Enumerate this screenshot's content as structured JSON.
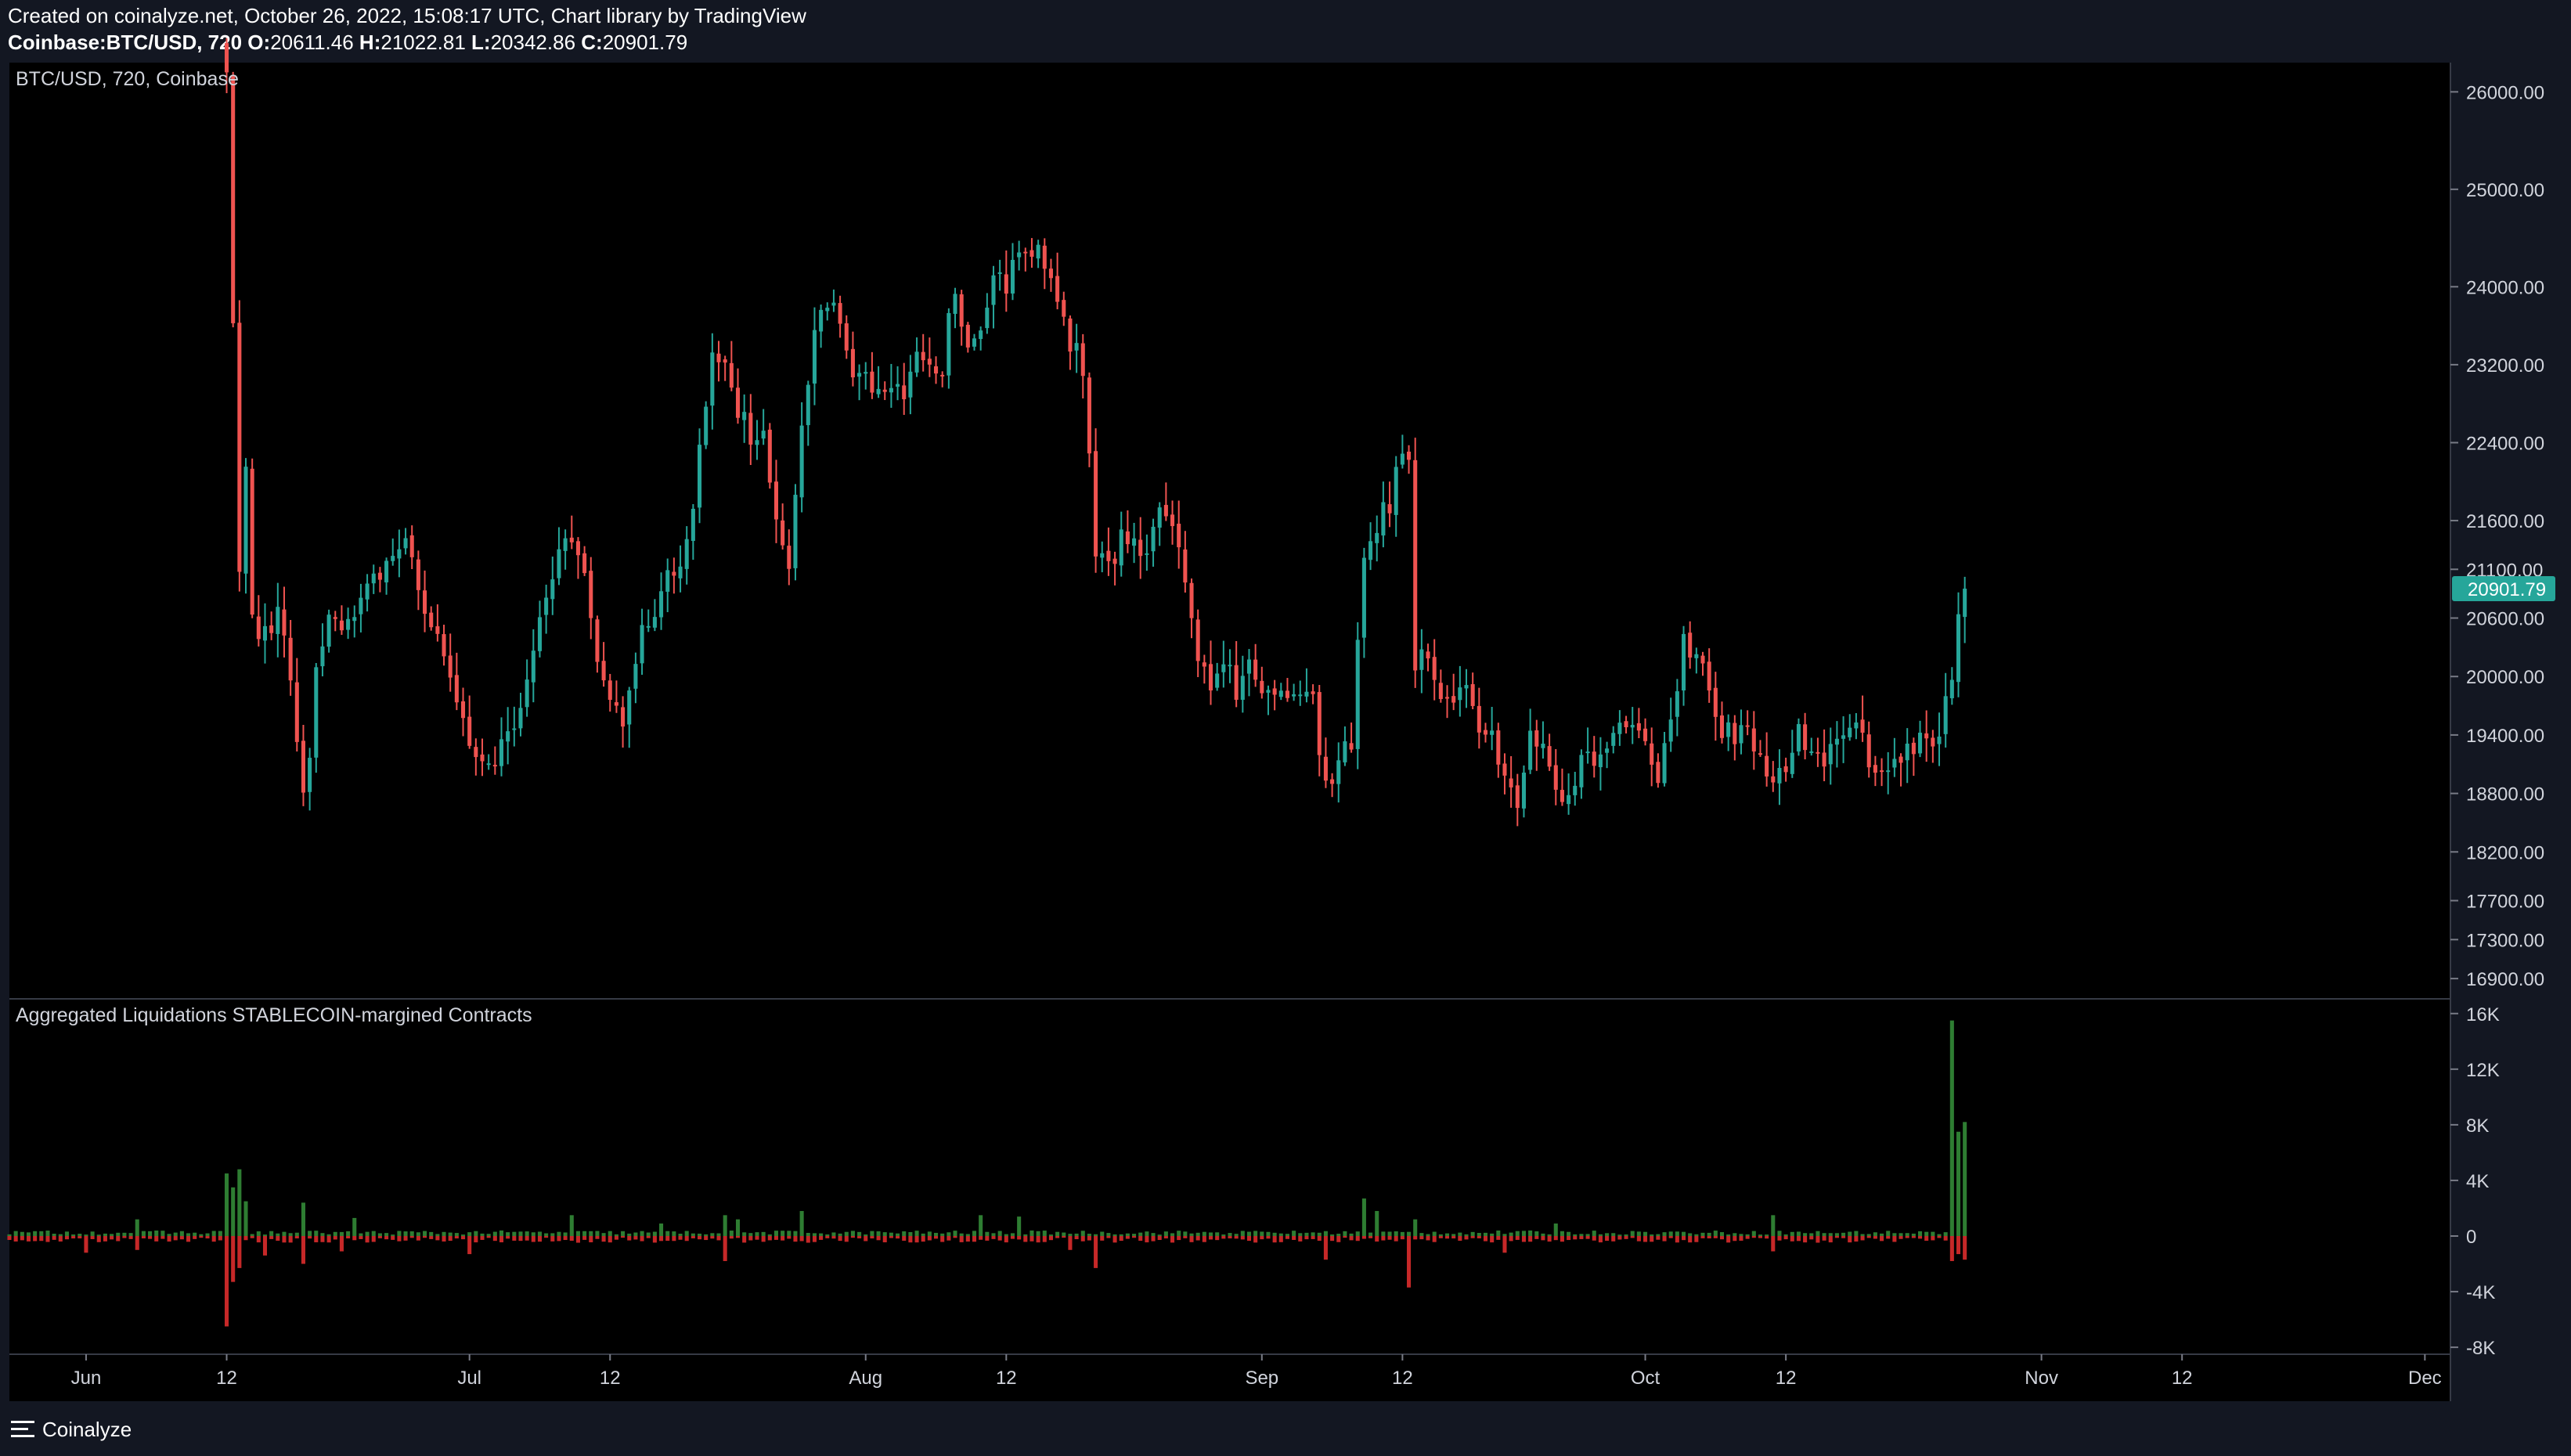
{
  "header": {
    "created": "Created on coinalyze.net, October 26, 2022, 15:08:17 UTC, Chart library by TradingView",
    "symbol": "Coinbase:BTC/USD, 720 ",
    "o_label": "O:",
    "o_value": "20611.46",
    "h_label": " H:",
    "h_value": "21022.81",
    "l_label": " L:",
    "l_value": "20342.86",
    "c_label": " C:",
    "c_value": "20901.79"
  },
  "price_pane": {
    "legend": "BTC/USD, 720, Coinbase"
  },
  "liq_pane": {
    "legend": "Aggregated Liquidations STABLECOIN-margined Contracts"
  },
  "footer": {
    "brand": "Coinalyze",
    "brand_icon": "menu-lines-icon"
  },
  "colors": {
    "up": "#26a69a",
    "down": "#ef5350",
    "liq_long": "#2e7d32",
    "liq_short": "#c62828",
    "last_price_bg": "#26a69a"
  },
  "chart_data": [
    {
      "type": "candlestick",
      "title": "BTC/USD, 720, Coinbase",
      "interval_hours": 12,
      "ylim": [
        16700,
        26300
      ],
      "y_ticks": [
        26000,
        25000,
        24000,
        23200,
        22400,
        21600,
        21100,
        20600,
        20000,
        19400,
        18800,
        18200,
        17700,
        17300,
        16900
      ],
      "y_tick_labels": [
        "26000.00",
        "25000.00",
        "24000.00",
        "23200.00",
        "22400.00",
        "21600.00",
        "21100.00",
        "20600.00",
        "20000.00",
        "19400.00",
        "18800.00",
        "18200.00",
        "17700.00",
        "17300.00",
        "16900.00"
      ],
      "x_ticks": [
        {
          "date": "2022-06-01",
          "label": "Jun"
        },
        {
          "date": "2022-06-12",
          "label": "12"
        },
        {
          "date": "2022-07-01",
          "label": "Jul"
        },
        {
          "date": "2022-07-12",
          "label": "12"
        },
        {
          "date": "2022-08-01",
          "label": "Aug"
        },
        {
          "date": "2022-08-12",
          "label": "12"
        },
        {
          "date": "2022-09-01",
          "label": "Sep"
        },
        {
          "date": "2022-09-12",
          "label": "12"
        },
        {
          "date": "2022-10-01",
          "label": "Oct"
        },
        {
          "date": "2022-10-12",
          "label": "12"
        },
        {
          "date": "2022-11-01",
          "label": "Nov"
        },
        {
          "date": "2022-11-12",
          "label": "12"
        },
        {
          "date": "2022-12-01",
          "label": "Dec"
        }
      ],
      "x_range": [
        "2022-05-26",
        "2022-12-03"
      ],
      "last_price": 20901.79,
      "last_price_label": "20901.79",
      "close_anchors": [
        [
          "2022-06-12",
          26200
        ],
        [
          "2022-06-12 12:00",
          23500
        ],
        [
          "2022-06-13",
          21000
        ],
        [
          "2022-06-13 12:00",
          22200
        ],
        [
          "2022-06-14",
          20500
        ],
        [
          "2022-06-15",
          20400
        ],
        [
          "2022-06-16",
          20600
        ],
        [
          "2022-06-17",
          20000
        ],
        [
          "2022-06-18",
          18800
        ],
        [
          "2022-06-18 12:00",
          19200
        ],
        [
          "2022-06-19",
          20200
        ],
        [
          "2022-06-20",
          20600
        ],
        [
          "2022-06-22",
          20500
        ],
        [
          "2022-06-23",
          20900
        ],
        [
          "2022-06-25",
          21200
        ],
        [
          "2022-06-26",
          21300
        ],
        [
          "2022-06-27",
          21000
        ],
        [
          "2022-06-29",
          20100
        ],
        [
          "2022-07-01",
          19300
        ],
        [
          "2022-07-03",
          19200
        ],
        [
          "2022-07-04",
          19500
        ],
        [
          "2022-07-05",
          19700
        ],
        [
          "2022-07-06",
          20200
        ],
        [
          "2022-07-07",
          20800
        ],
        [
          "2022-07-08",
          21300
        ],
        [
          "2022-07-09",
          21500
        ],
        [
          "2022-07-10",
          21000
        ],
        [
          "2022-07-11",
          20200
        ],
        [
          "2022-07-12",
          19700
        ],
        [
          "2022-07-13",
          19600
        ],
        [
          "2022-07-14",
          20200
        ],
        [
          "2022-07-15",
          20600
        ],
        [
          "2022-07-16",
          20900
        ],
        [
          "2022-07-17",
          21100
        ],
        [
          "2022-07-18",
          21400
        ],
        [
          "2022-07-19",
          22300
        ],
        [
          "2022-07-20",
          23400
        ],
        [
          "2022-07-21",
          23100
        ],
        [
          "2022-07-22",
          22700
        ],
        [
          "2022-07-23",
          22500
        ],
        [
          "2022-07-24",
          22400
        ],
        [
          "2022-07-25",
          21600
        ],
        [
          "2022-07-26",
          21200
        ],
        [
          "2022-07-27",
          22600
        ],
        [
          "2022-07-28",
          23600
        ],
        [
          "2022-07-29",
          23800
        ],
        [
          "2022-07-30",
          23600
        ],
        [
          "2022-07-31",
          23200
        ],
        [
          "2022-08-01",
          23200
        ],
        [
          "2022-08-02",
          22900
        ],
        [
          "2022-08-03",
          23000
        ],
        [
          "2022-08-04",
          22800
        ],
        [
          "2022-08-05",
          23200
        ],
        [
          "2022-08-06",
          23100
        ],
        [
          "2022-08-07",
          23200
        ],
        [
          "2022-08-08",
          24000
        ],
        [
          "2022-08-09",
          23400
        ],
        [
          "2022-08-10",
          23600
        ],
        [
          "2022-08-11",
          24200
        ],
        [
          "2022-08-12",
          23900
        ],
        [
          "2022-08-13",
          24400
        ],
        [
          "2022-08-14",
          24400
        ],
        [
          "2022-08-15",
          24200
        ],
        [
          "2022-08-16",
          23900
        ],
        [
          "2022-08-17",
          23400
        ],
        [
          "2022-08-18",
          23200
        ],
        [
          "2022-08-19",
          21300
        ],
        [
          "2022-08-20",
          21100
        ],
        [
          "2022-08-21",
          21400
        ],
        [
          "2022-08-22",
          21300
        ],
        [
          "2022-08-23",
          21400
        ],
        [
          "2022-08-24",
          21600
        ],
        [
          "2022-08-25",
          21500
        ],
        [
          "2022-08-26",
          20900
        ],
        [
          "2022-08-27",
          20200
        ],
        [
          "2022-08-28",
          19900
        ],
        [
          "2022-08-29",
          20100
        ],
        [
          "2022-08-30",
          19900
        ],
        [
          "2022-08-31",
          20100
        ],
        [
          "2022-09-01",
          19900
        ],
        [
          "2022-09-02",
          19900
        ],
        [
          "2022-09-03",
          19800
        ],
        [
          "2022-09-04",
          19900
        ],
        [
          "2022-09-05",
          19800
        ],
        [
          "2022-09-06",
          18800
        ],
        [
          "2022-09-07",
          19200
        ],
        [
          "2022-09-08",
          19300
        ],
        [
          "2022-09-09",
          21300
        ],
        [
          "2022-09-10",
          21600
        ],
        [
          "2022-09-11",
          21800
        ],
        [
          "2022-09-12",
          22400
        ],
        [
          "2022-09-12 12:00",
          22200
        ],
        [
          "2022-09-13",
          20200
        ],
        [
          "2022-09-14",
          20200
        ],
        [
          "2022-09-15",
          19800
        ],
        [
          "2022-09-16",
          19800
        ],
        [
          "2022-09-17",
          20000
        ],
        [
          "2022-09-18",
          19400
        ],
        [
          "2022-09-19",
          19500
        ],
        [
          "2022-09-20",
          18900
        ],
        [
          "2022-09-21",
          18700
        ],
        [
          "2022-09-22",
          19400
        ],
        [
          "2022-09-23",
          19300
        ],
        [
          "2022-09-24",
          18900
        ],
        [
          "2022-09-25",
          18800
        ],
        [
          "2022-09-26",
          19200
        ],
        [
          "2022-09-27",
          19100
        ],
        [
          "2022-09-28",
          19400
        ],
        [
          "2022-09-29",
          19600
        ],
        [
          "2022-09-30",
          19400
        ],
        [
          "2022-10-01",
          19300
        ],
        [
          "2022-10-02",
          19000
        ],
        [
          "2022-10-03",
          19600
        ],
        [
          "2022-10-04",
          20300
        ],
        [
          "2022-10-05",
          20200
        ],
        [
          "2022-10-06",
          19900
        ],
        [
          "2022-10-07",
          19500
        ],
        [
          "2022-10-08",
          19400
        ],
        [
          "2022-10-09",
          19400
        ],
        [
          "2022-10-10",
          19100
        ],
        [
          "2022-10-11",
          19000
        ],
        [
          "2022-10-12",
          19100
        ],
        [
          "2022-10-13",
          19400
        ],
        [
          "2022-10-14",
          19200
        ],
        [
          "2022-10-15",
          19100
        ],
        [
          "2022-10-16",
          19300
        ],
        [
          "2022-10-17",
          19500
        ],
        [
          "2022-10-18",
          19300
        ],
        [
          "2022-10-19",
          19100
        ],
        [
          "2022-10-20",
          19000
        ],
        [
          "2022-10-21",
          19200
        ],
        [
          "2022-10-22",
          19200
        ],
        [
          "2022-10-23",
          19500
        ],
        [
          "2022-10-24",
          19300
        ],
        [
          "2022-10-25",
          20100
        ],
        [
          "2022-10-25 12:00",
          20611.46
        ],
        [
          "2022-10-26",
          20901.79
        ]
      ]
    },
    {
      "type": "bar",
      "title": "Aggregated Liquidations STABLECOIN-margined Contracts",
      "ylim": [
        -8500,
        17000
      ],
      "y_ticks": [
        16000,
        12000,
        8000,
        4000,
        0,
        -4000,
        -8000
      ],
      "y_tick_labels": [
        "16K",
        "12K",
        "8K",
        "4K",
        "0",
        "-4K",
        "-8K"
      ],
      "series": [
        {
          "name": "long",
          "baseline": 250,
          "spikes": [
            [
              "2022-06-12",
              4500
            ],
            [
              "2022-06-12 12:00",
              3500
            ],
            [
              "2022-06-13",
              4800
            ],
            [
              "2022-06-13 12:00",
              2500
            ],
            [
              "2022-06-18",
              2400
            ],
            [
              "2022-06-05",
              1200
            ],
            [
              "2022-06-22",
              1300
            ],
            [
              "2022-07-09",
              1500
            ],
            [
              "2022-07-16",
              900
            ],
            [
              "2022-07-21",
              1500
            ],
            [
              "2022-07-22",
              1200
            ],
            [
              "2022-07-27",
              1800
            ],
            [
              "2022-08-10",
              1500
            ],
            [
              "2022-08-13",
              1400
            ],
            [
              "2022-09-09",
              2700
            ],
            [
              "2022-09-10",
              1800
            ],
            [
              "2022-09-13",
              1200
            ],
            [
              "2022-09-24",
              900
            ],
            [
              "2022-10-11",
              1500
            ],
            [
              "2022-10-25",
              15500
            ],
            [
              "2022-10-25 12:00",
              7500
            ],
            [
              "2022-10-26",
              8200
            ]
          ]
        },
        {
          "name": "short",
          "baseline": -300,
          "spikes": [
            [
              "2022-06-12",
              -6500
            ],
            [
              "2022-06-12 12:00",
              -3300
            ],
            [
              "2022-06-13",
              -2300
            ],
            [
              "2022-06-15",
              -1400
            ],
            [
              "2022-06-18",
              -2000
            ],
            [
              "2022-06-01",
              -1200
            ],
            [
              "2022-06-05",
              -1000
            ],
            [
              "2022-06-21",
              -1100
            ],
            [
              "2022-07-01",
              -1300
            ],
            [
              "2022-07-21",
              -1800
            ],
            [
              "2022-08-17",
              -1000
            ],
            [
              "2022-08-19",
              -2300
            ],
            [
              "2022-09-06",
              -1700
            ],
            [
              "2022-09-12 12:00",
              -3700
            ],
            [
              "2022-09-20",
              -1200
            ],
            [
              "2022-10-11",
              -1100
            ],
            [
              "2022-10-25",
              -1800
            ],
            [
              "2022-10-25 12:00",
              -1300
            ],
            [
              "2022-10-26",
              -1700
            ]
          ]
        }
      ],
      "x_range": [
        "2022-05-26",
        "2022-12-03"
      ],
      "x_end": "2022-10-26"
    }
  ]
}
